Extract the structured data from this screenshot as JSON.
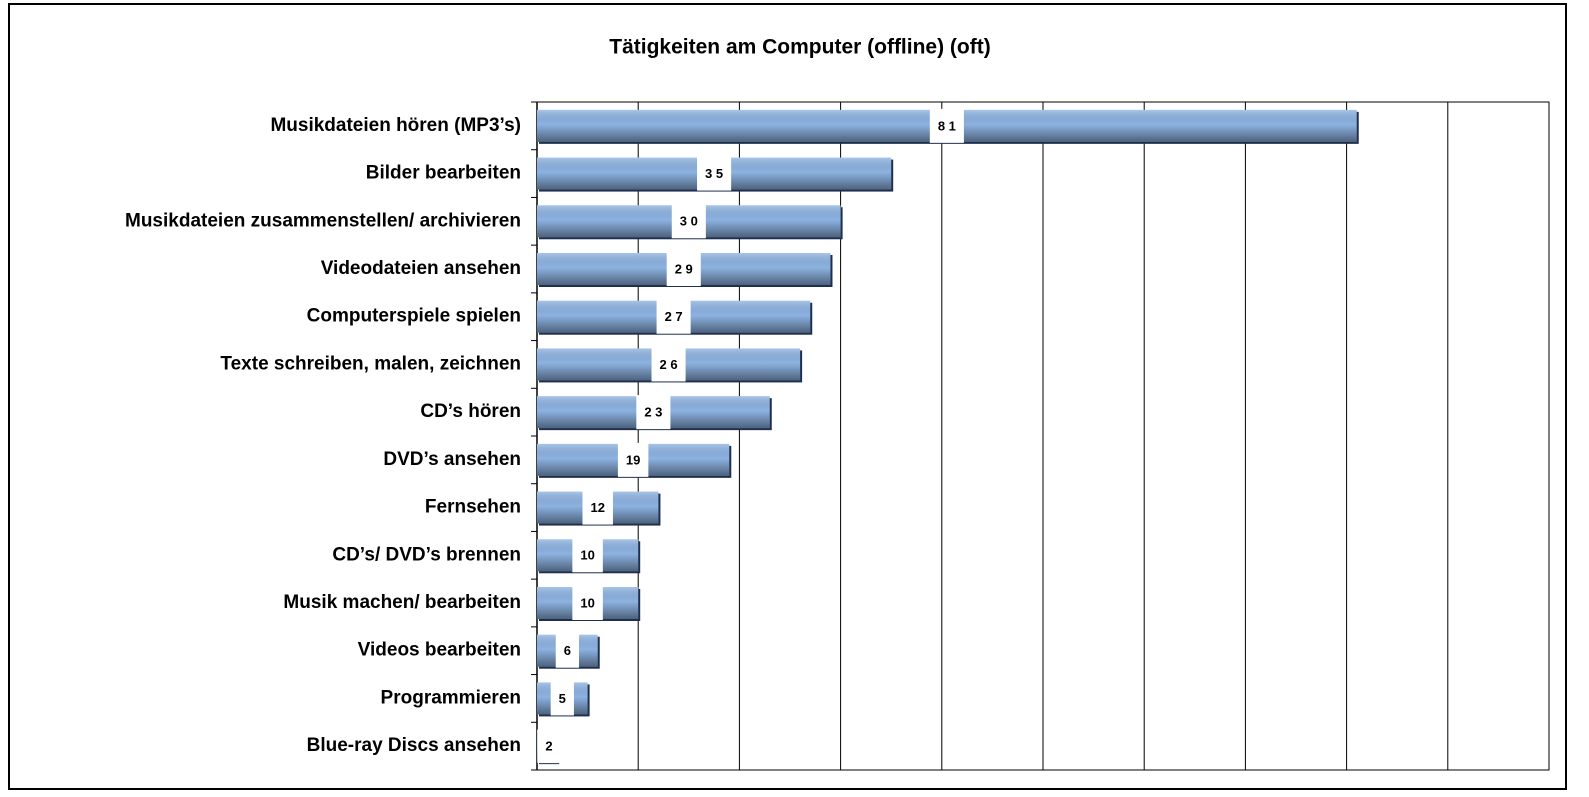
{
  "chart_data": {
    "type": "bar",
    "orientation": "horizontal",
    "title": "Tätigkeiten am Computer (offline) (oft)",
    "categories": [
      "Musikdateien hören (MP3’s)",
      "Bilder bearbeiten",
      "Musikdateien zusammenstellen/ archivieren",
      "Videodateien ansehen",
      "Computerspiele spielen",
      "Texte schreiben, malen, zeichnen",
      "CD’s hören",
      "DVD’s ansehen",
      "Fernsehen",
      "CD’s/ DVD’s brennen",
      "Musik machen/ bearbeiten",
      "Videos bearbeiten",
      "Programmieren",
      "Blue-ray Discs ansehen"
    ],
    "values": [
      81,
      35,
      30,
      29,
      27,
      26,
      23,
      19,
      12,
      10,
      10,
      6,
      5,
      2
    ],
    "value_labels": [
      "8 1",
      "3 5",
      "3 0",
      "2 9",
      "2 7",
      "2 6",
      "2 3",
      "19",
      "12",
      "10",
      "10",
      "6",
      "5",
      "2"
    ],
    "color": "#8db3e2",
    "xlim": [
      0,
      100
    ],
    "xticks": [
      0,
      10,
      20,
      30,
      40,
      50,
      60,
      70,
      80,
      90,
      100
    ],
    "grid": true
  }
}
